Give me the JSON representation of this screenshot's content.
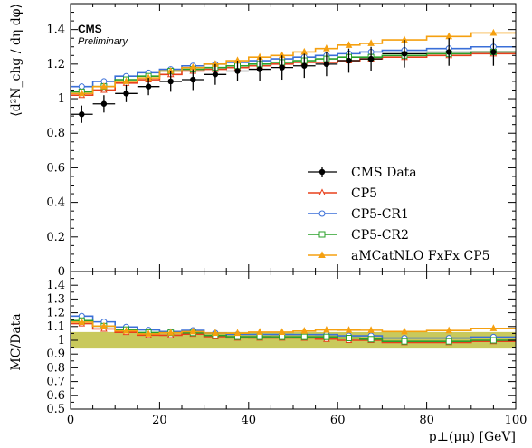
{
  "chart_data": {
    "type": "line",
    "experiment": "CMS",
    "status": "Preliminary",
    "xlabel": "p⊥(μμ) [GeV]",
    "ylabel_main": "⟨d²N_chg / dη dφ⟩",
    "ylabel_ratio": "MC/Data",
    "xlim": [
      0,
      100
    ],
    "ylim_main": [
      0,
      1.55
    ],
    "ylim_ratio": [
      0.5,
      1.5
    ],
    "x_ticks": [
      0,
      20,
      40,
      60,
      80,
      100
    ],
    "y_ticks_main": [
      0,
      0.2,
      0.4,
      0.6,
      0.8,
      1,
      1.2,
      1.4
    ],
    "y_ticks_ratio": [
      0.5,
      0.6,
      0.7,
      0.8,
      0.9,
      1,
      1.1,
      1.2,
      1.3,
      1.4
    ],
    "legend_position": "bottom-right",
    "bin_edges": [
      0,
      5,
      10,
      15,
      20,
      25,
      30,
      35,
      40,
      45,
      50,
      55,
      60,
      65,
      70,
      80,
      90,
      100
    ],
    "data": {
      "name": "CMS Data",
      "color": "#000000",
      "values": [
        0.91,
        0.97,
        1.03,
        1.07,
        1.1,
        1.11,
        1.14,
        1.16,
        1.17,
        1.18,
        1.19,
        1.2,
        1.22,
        1.23,
        1.26,
        1.27,
        1.27
      ],
      "errors": [
        0.05,
        0.05,
        0.05,
        0.05,
        0.06,
        0.06,
        0.06,
        0.06,
        0.07,
        0.07,
        0.07,
        0.07,
        0.07,
        0.07,
        0.08,
        0.08,
        0.08
      ]
    },
    "series": [
      {
        "name": "CP5",
        "color": "#e8401c",
        "marker": "triangle-open",
        "values": [
          1.02,
          1.05,
          1.09,
          1.11,
          1.14,
          1.16,
          1.17,
          1.18,
          1.19,
          1.2,
          1.21,
          1.21,
          1.22,
          1.23,
          1.24,
          1.25,
          1.26
        ]
      },
      {
        "name": "CP5-CR1",
        "color": "#3a6fd8",
        "marker": "circle-open",
        "values": [
          1.07,
          1.1,
          1.13,
          1.15,
          1.17,
          1.19,
          1.2,
          1.21,
          1.22,
          1.23,
          1.24,
          1.25,
          1.26,
          1.27,
          1.28,
          1.29,
          1.3
        ]
      },
      {
        "name": "CP5-CR2",
        "color": "#2aa02a",
        "marker": "square-open",
        "values": [
          1.04,
          1.07,
          1.11,
          1.13,
          1.16,
          1.17,
          1.18,
          1.19,
          1.2,
          1.21,
          1.22,
          1.23,
          1.24,
          1.24,
          1.25,
          1.26,
          1.27
        ]
      },
      {
        "name": "aMCatNLO FxFx CP5",
        "color": "#f5a010",
        "marker": "triangle-filled",
        "values": [
          1.03,
          1.07,
          1.1,
          1.12,
          1.16,
          1.18,
          1.2,
          1.22,
          1.24,
          1.25,
          1.27,
          1.29,
          1.31,
          1.32,
          1.34,
          1.36,
          1.38
        ]
      }
    ],
    "ratio_band": {
      "color": "#bfbf40",
      "low": 0.94,
      "high": 1.06
    }
  }
}
